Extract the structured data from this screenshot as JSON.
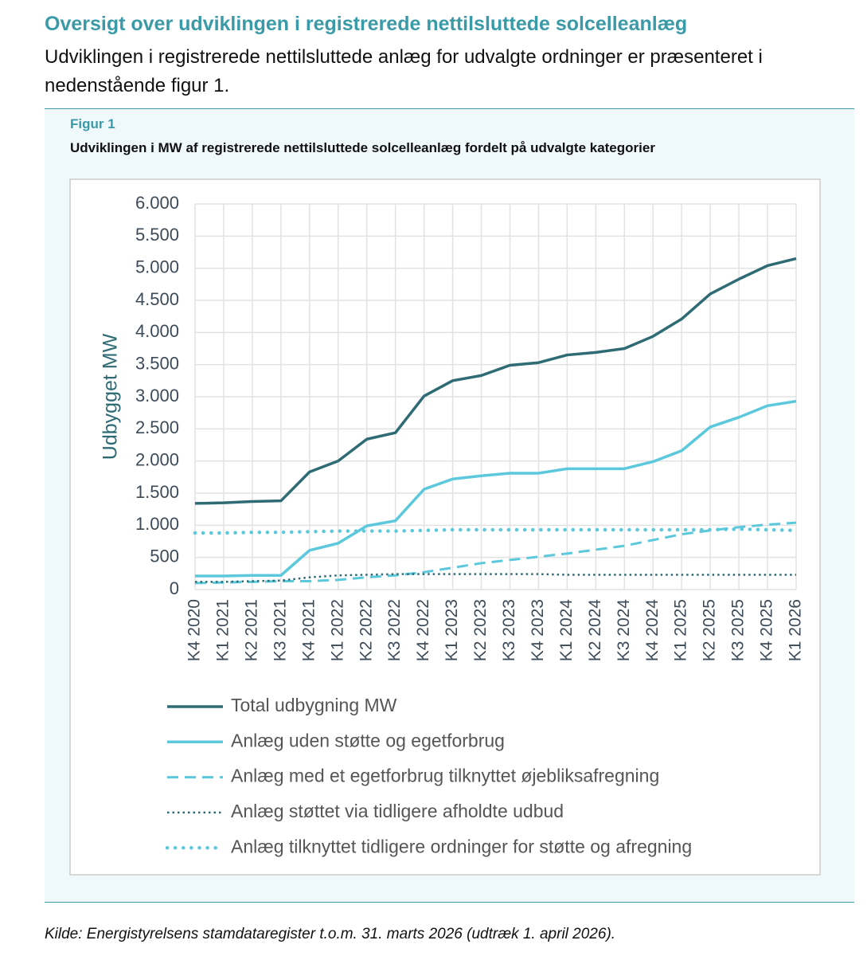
{
  "heading": "Oversigt over udviklingen i registrerede nettilsluttede solcelleanlæg",
  "intro": "Udviklingen i registrerede nettilsluttede anlæg for udvalgte ordninger er præsenteret i nedenstående figur 1.",
  "figure_label": "Figur 1",
  "chart_data": {
    "type": "line",
    "title": "Udviklingen i MW af registrerede nettilsluttede solcelleanlæg fordelt på udvalgte kategorier",
    "y_label": "Udbygget MW",
    "categories": [
      "K4 2020",
      "K1 2021",
      "K2 2021",
      "K3 2021",
      "K4 2021",
      "K1 2022",
      "K2 2022",
      "K3 2022",
      "K4 2022",
      "K1 2023",
      "K2 2023",
      "K3 2023",
      "K4 2023",
      "K1 2024",
      "K2 2024",
      "K3 2024",
      "K4 2024",
      "K1 2025",
      "K2 2025",
      "K3 2025",
      "K4 2025",
      "K1 2026"
    ],
    "series": [
      {
        "name": "Total udbygning MW",
        "color": "#2e6b74",
        "dash": "solid",
        "values": [
          1340,
          1350,
          1370,
          1380,
          1830,
          2000,
          2340,
          2440,
          3010,
          3250,
          3330,
          3490,
          3530,
          3650,
          3690,
          3750,
          3940,
          4210,
          4600,
          4830,
          5040,
          5150
        ]
      },
      {
        "name": "Anlæg uden støtte og egetforbrug",
        "color": "#5bc8dc",
        "dash": "solid",
        "values": [
          210,
          210,
          220,
          220,
          610,
          720,
          990,
          1070,
          1560,
          1720,
          1770,
          1810,
          1810,
          1880,
          1880,
          1880,
          1990,
          2160,
          2530,
          2680,
          2860,
          2930
        ]
      },
      {
        "name": "Anlæg med et egetforbrug tilknyttet øjebliksafregning",
        "color": "#5bc8dc",
        "dash": "dashed",
        "values": [
          100,
          110,
          120,
          130,
          130,
          150,
          190,
          220,
          270,
          340,
          410,
          460,
          510,
          560,
          620,
          680,
          770,
          860,
          920,
          970,
          1010,
          1040
        ]
      },
      {
        "name": "Anlæg støttet via tidligere afholdte udbud",
        "color": "#2e6b74",
        "dash": "dotted",
        "values": [
          120,
          120,
          130,
          140,
          190,
          220,
          230,
          240,
          240,
          240,
          240,
          240,
          240,
          230,
          230,
          230,
          230,
          230,
          230,
          230,
          230,
          230
        ]
      },
      {
        "name": "Anlæg tilknyttet tidligere ordninger for støtte og afregning",
        "color": "#5bc8dc",
        "dash": "round-dotted",
        "values": [
          880,
          880,
          890,
          890,
          900,
          910,
          910,
          910,
          920,
          930,
          930,
          930,
          930,
          930,
          930,
          930,
          930,
          930,
          930,
          940,
          930,
          920
        ]
      }
    ],
    "ylim": [
      0,
      6000
    ],
    "yticks": [
      0,
      500,
      {
        "value": 1000,
        "label": "1.000"
      },
      {
        "value": 1500,
        "label": "1.500"
      },
      {
        "value": 2000,
        "label": "2.000"
      },
      {
        "value": 2500,
        "label": "2.500"
      },
      {
        "value": 3000,
        "label": "3.000"
      },
      {
        "value": 3500,
        "label": "3.500"
      },
      {
        "value": 4000,
        "label": "4.000"
      },
      {
        "value": 4500,
        "label": "4.500"
      },
      {
        "value": 5000,
        "label": "5.000"
      },
      {
        "value": 5500,
        "label": "5.500"
      },
      {
        "value": 6000,
        "label": "6.000"
      }
    ],
    "grid": true,
    "legend": "bottom"
  },
  "source": "Kilde: Energistyrelsens stamdataregister t.o.m. 31. marts 2026 (udtræk 1. april 2026)."
}
